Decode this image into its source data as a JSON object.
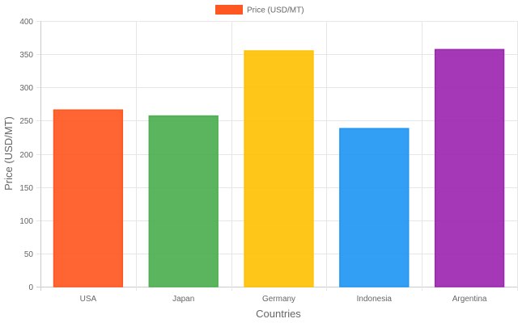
{
  "chart_data": {
    "type": "bar",
    "categories": [
      "USA",
      "Japan",
      "Germany",
      "Indonesia",
      "Argentina"
    ],
    "series": [
      {
        "name": "Price (USD/MT)",
        "values": [
          266,
          257,
          355,
          238,
          357
        ],
        "colors": [
          "#FF5722",
          "#4CAF50",
          "#FFC107",
          "#2196F3",
          "#9C27B0"
        ]
      }
    ],
    "xlabel": "Countries",
    "ylabel": "Price (USD/MT)",
    "ylim": [
      0,
      400
    ],
    "yticks": [
      0,
      50,
      100,
      150,
      200,
      250,
      300,
      350,
      400
    ],
    "grid": true,
    "legend": "top-center",
    "legend_color": "#FF5722"
  }
}
